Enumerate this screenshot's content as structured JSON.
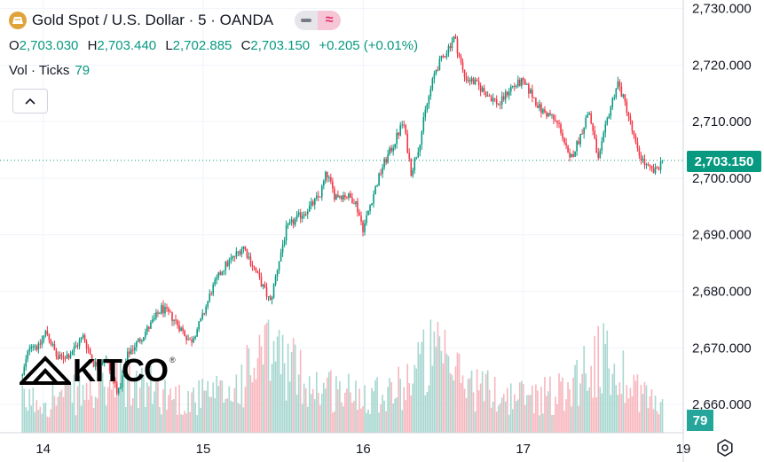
{
  "header": {
    "title": "Gold Spot / U.S. Dollar · 5 · OANDA",
    "ohlc": {
      "o_label": "O",
      "o_value": "2,703.030",
      "h_label": "H",
      "h_value": "2,703.440",
      "l_label": "L",
      "l_value": "2,702.885",
      "c_label": "C",
      "c_value": "2,703.150",
      "change": "+0.205 (+0.01%)"
    },
    "volume_label": "Vol · Ticks",
    "volume_value": "79",
    "icons": [
      "gold-icon",
      "flag-minus-icon",
      "flag-wave-icon",
      "chevron-up-icon",
      "settings-icon"
    ]
  },
  "watermark": {
    "brand": "KITCO",
    "mark": "®"
  },
  "current_price_tag": "2,703.150",
  "current_volume_tag": "79",
  "colors": {
    "up": "#089981",
    "down": "#f23645",
    "vol_up": "#a7d7d0",
    "vol_down": "#f7b6bd"
  },
  "chart_data": {
    "type": "candlestick",
    "y_tick_labels": [
      "2,730.000",
      "2,720.000",
      "2,710.000",
      "2,700.000",
      "2,690.000",
      "2,680.000",
      "2,670.000",
      "2,660.000"
    ],
    "y_ticks": [
      2730,
      2720,
      2710,
      2700,
      2690,
      2680,
      2670,
      2660
    ],
    "ylim": [
      2655.0,
      2731.5
    ],
    "x_tick_labels": [
      "14",
      "15",
      "16",
      "17",
      "19"
    ],
    "x_ticks": [
      0.13,
      1.13,
      2.13,
      3.13,
      4.13
    ],
    "xlim": [
      -0.14,
      4.13
    ],
    "current_price": 2703.15,
    "price_path": [
      [
        0.0,
        2665
      ],
      [
        0.05,
        2671
      ],
      [
        0.1,
        2670
      ],
      [
        0.15,
        2673
      ],
      [
        0.22,
        2668
      ],
      [
        0.3,
        2669
      ],
      [
        0.38,
        2672
      ],
      [
        0.45,
        2667
      ],
      [
        0.52,
        2668
      ],
      [
        0.6,
        2662
      ],
      [
        0.66,
        2669
      ],
      [
        0.72,
        2671
      ],
      [
        0.8,
        2674
      ],
      [
        0.87,
        2677
      ],
      [
        0.95,
        2675
      ],
      [
        1.05,
        2671
      ],
      [
        1.12,
        2675
      ],
      [
        1.18,
        2680
      ],
      [
        1.25,
        2684
      ],
      [
        1.32,
        2686
      ],
      [
        1.38,
        2688
      ],
      [
        1.45,
        2684
      ],
      [
        1.5,
        2681
      ],
      [
        1.55,
        2678
      ],
      [
        1.6,
        2685
      ],
      [
        1.65,
        2691
      ],
      [
        1.72,
        2693
      ],
      [
        1.8,
        2695
      ],
      [
        1.86,
        2697
      ],
      [
        1.9,
        2701
      ],
      [
        1.95,
        2697
      ],
      [
        2.02,
        2697
      ],
      [
        2.08,
        2696
      ],
      [
        2.13,
        2691
      ],
      [
        2.18,
        2696
      ],
      [
        2.25,
        2702
      ],
      [
        2.32,
        2706
      ],
      [
        2.38,
        2710
      ],
      [
        2.43,
        2701
      ],
      [
        2.48,
        2706
      ],
      [
        2.52,
        2712
      ],
      [
        2.58,
        2719
      ],
      [
        2.64,
        2722
      ],
      [
        2.7,
        2725
      ],
      [
        2.76,
        2718
      ],
      [
        2.82,
        2717
      ],
      [
        2.9,
        2715
      ],
      [
        2.98,
        2713
      ],
      [
        3.05,
        2716
      ],
      [
        3.12,
        2717
      ],
      [
        3.18,
        2715
      ],
      [
        3.24,
        2712
      ],
      [
        3.3,
        2711
      ],
      [
        3.36,
        2709
      ],
      [
        3.42,
        2703
      ],
      [
        3.48,
        2707
      ],
      [
        3.54,
        2712
      ],
      [
        3.6,
        2703
      ],
      [
        3.66,
        2711
      ],
      [
        3.72,
        2717
      ],
      [
        3.78,
        2712
      ],
      [
        3.84,
        2705
      ],
      [
        3.9,
        2702
      ],
      [
        3.95,
        2701
      ],
      [
        4.0,
        2703.15
      ]
    ],
    "volume_profile": [
      [
        0.0,
        0.35
      ],
      [
        0.3,
        0.42
      ],
      [
        0.6,
        0.55
      ],
      [
        0.8,
        0.5
      ],
      [
        1.0,
        0.38
      ],
      [
        1.3,
        0.45
      ],
      [
        1.55,
        0.95
      ],
      [
        1.8,
        0.55
      ],
      [
        2.05,
        0.45
      ],
      [
        2.35,
        0.5
      ],
      [
        2.55,
        0.9
      ],
      [
        2.8,
        0.55
      ],
      [
        3.05,
        0.4
      ],
      [
        3.35,
        0.45
      ],
      [
        3.6,
        0.85
      ],
      [
        3.8,
        0.6
      ],
      [
        4.0,
        0.25
      ]
    ]
  }
}
